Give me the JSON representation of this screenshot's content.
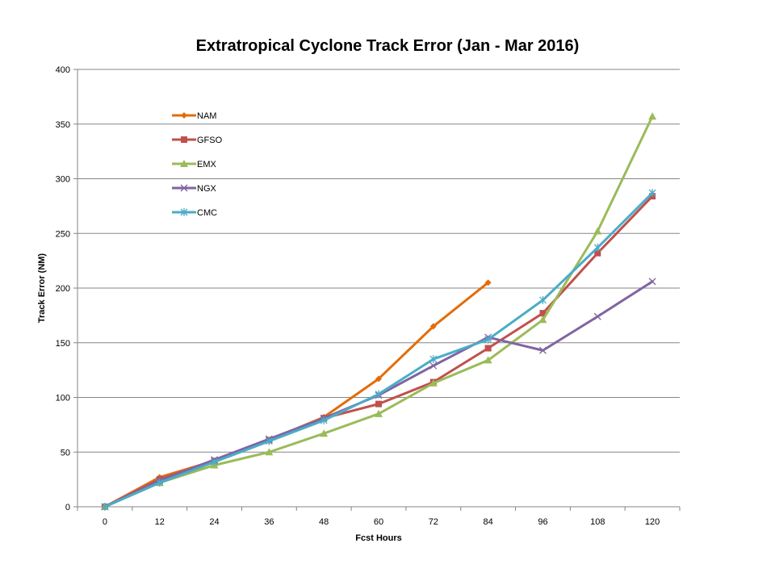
{
  "chart_data": {
    "type": "line",
    "title": "Extratropical Cyclone Track Error  (Jan - Mar 2016)",
    "xlabel": "Fcst Hours",
    "ylabel": "Track Error  (NM)",
    "categories": [
      "0",
      "12",
      "24",
      "36",
      "48",
      "60",
      "72",
      "84",
      "96",
      "108",
      "120"
    ],
    "ylim": [
      0,
      400
    ],
    "yticks": [
      0,
      50,
      100,
      150,
      200,
      250,
      300,
      350,
      400
    ],
    "yticklabels": [
      "0",
      "50",
      "100",
      "150",
      "200",
      "250",
      "300",
      "350",
      "400"
    ],
    "grid": "horizontal",
    "legend_position": "upper-left inside plot",
    "series": [
      {
        "name": "NAM",
        "color": "#e36c0a",
        "marker": "diamond",
        "values": [
          0,
          27,
          42,
          61,
          82,
          117,
          165,
          205,
          null,
          null,
          null
        ]
      },
      {
        "name": "GFSO",
        "color": "#c0504d",
        "marker": "square",
        "values": [
          0,
          25,
          42,
          61,
          81,
          94,
          114,
          145,
          177,
          232,
          284
        ]
      },
      {
        "name": "EMX",
        "color": "#9bbb59",
        "marker": "triangle",
        "values": [
          0,
          22,
          38,
          50,
          67,
          85,
          113,
          134,
          171,
          252,
          357
        ]
      },
      {
        "name": "NGX",
        "color": "#8064a2",
        "marker": "x",
        "values": [
          0,
          24,
          43,
          62,
          81,
          102,
          129,
          155,
          143,
          174,
          206
        ]
      },
      {
        "name": "CMC",
        "color": "#4bacc6",
        "marker": "star",
        "values": [
          0,
          22,
          41,
          60,
          79,
          103,
          135,
          153,
          189,
          237,
          287
        ]
      }
    ]
  }
}
